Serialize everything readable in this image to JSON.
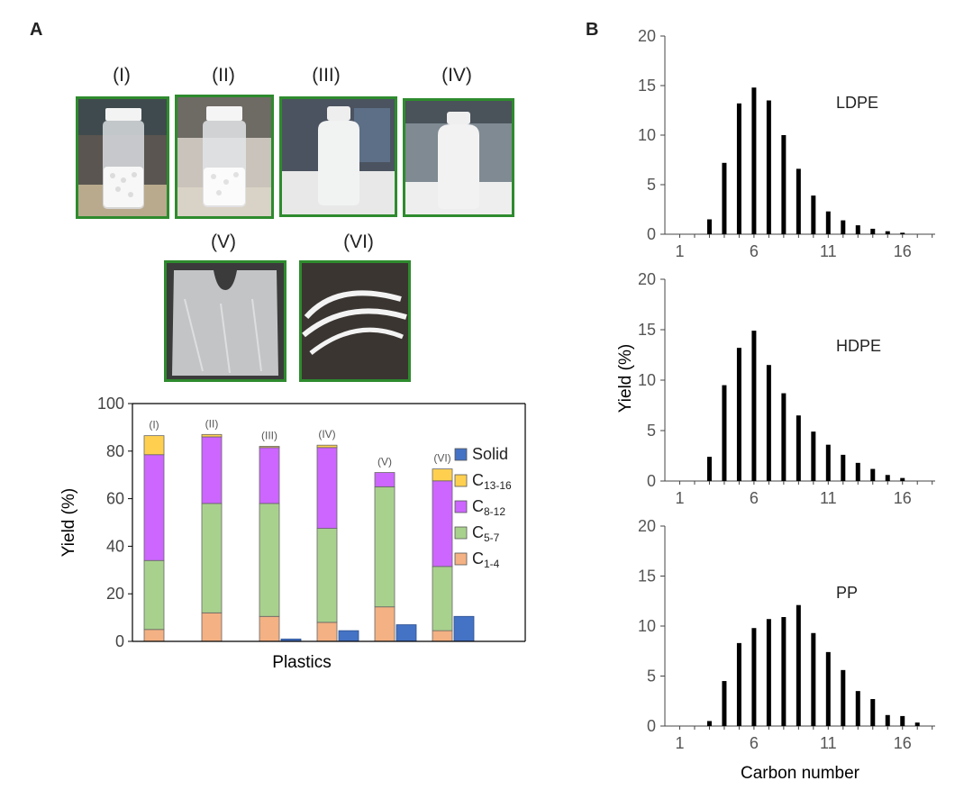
{
  "panels": {
    "a": "A",
    "b": "B"
  },
  "photos": [
    {
      "label": "(I)",
      "kind": "vial-pellets"
    },
    {
      "label": "(II)",
      "kind": "vial-pellets"
    },
    {
      "label": "(III)",
      "kind": "bottle"
    },
    {
      "label": "(IV)",
      "kind": "bottle"
    },
    {
      "label": "(V)",
      "kind": "plastic-bag"
    },
    {
      "label": "(VI)",
      "kind": "plastic-strips"
    }
  ],
  "colors": {
    "c14": "#f4b183",
    "c57": "#a9d18e",
    "c812": "#cc66ff",
    "c1316": "#ffd050",
    "solid": "#4472c4",
    "photo_border": "#2e8b2e"
  },
  "chart_data": [
    {
      "type": "bar",
      "stacked": true,
      "xlabel": "Plastics",
      "ylabel": "Yield (%)",
      "ylim": [
        0,
        100
      ],
      "yticks": [
        "0",
        "20",
        "40",
        "60",
        "80",
        "100"
      ],
      "categories": [
        "(I)",
        "(II)",
        "(III)",
        "(IV)",
        "(V)",
        "(VI)"
      ],
      "series": [
        {
          "name": "C1-4",
          "sub": "1-4",
          "values": [
            5,
            12,
            10.5,
            8,
            14.5,
            4.5
          ]
        },
        {
          "name": "C5-7",
          "sub": "5-7",
          "values": [
            29,
            46,
            47.5,
            39.5,
            50.5,
            27
          ]
        },
        {
          "name": "C8-12",
          "sub": "8-12",
          "values": [
            44.5,
            28,
            23.5,
            34,
            6,
            36
          ]
        },
        {
          "name": "C13-16",
          "sub": "13-16",
          "values": [
            8,
            1,
            0.5,
            1,
            0,
            5
          ]
        }
      ],
      "solid": {
        "name": "Solid",
        "values": [
          0,
          0,
          1,
          4.5,
          7,
          10.5
        ]
      },
      "legend": [
        "Solid",
        "C13-16",
        "C8-12",
        "C5-7",
        "C1-4"
      ],
      "legend_position": "right"
    },
    {
      "type": "bar",
      "annotation": "LDPE",
      "xticks": [
        "1",
        "6",
        "11",
        "16"
      ],
      "yticks": [
        "0",
        "5",
        "10",
        "15",
        "20"
      ],
      "ylim": [
        0,
        20
      ],
      "x": [
        3,
        4,
        5,
        6,
        7,
        8,
        9,
        10,
        11,
        12,
        13,
        14,
        15,
        16
      ],
      "values": [
        1.5,
        7.2,
        13.2,
        14.8,
        13.5,
        10,
        6.6,
        3.9,
        2.3,
        1.4,
        0.9,
        0.55,
        0.3,
        0.15
      ]
    },
    {
      "type": "bar",
      "annotation": "HDPE",
      "ylabel": "Yield (%)",
      "xticks": [
        "1",
        "6",
        "11",
        "16"
      ],
      "yticks": [
        "0",
        "5",
        "10",
        "15",
        "20"
      ],
      "ylim": [
        0,
        20
      ],
      "x": [
        3,
        4,
        5,
        6,
        7,
        8,
        9,
        10,
        11,
        12,
        13,
        14,
        15,
        16
      ],
      "values": [
        2.4,
        9.5,
        13.2,
        14.9,
        11.5,
        8.7,
        6.5,
        4.9,
        3.6,
        2.6,
        1.8,
        1.2,
        0.6,
        0.3
      ]
    },
    {
      "type": "bar",
      "annotation": "PP",
      "xlabel": "Carbon number",
      "xticks": [
        "1",
        "6",
        "11",
        "16"
      ],
      "yticks": [
        "0",
        "5",
        "10",
        "15",
        "20"
      ],
      "ylim": [
        0,
        20
      ],
      "x": [
        3,
        4,
        5,
        6,
        7,
        8,
        9,
        10,
        11,
        12,
        13,
        14,
        15,
        16,
        17
      ],
      "values": [
        0.5,
        4.5,
        8.3,
        9.8,
        10.7,
        10.9,
        12.1,
        9.3,
        7.4,
        5.6,
        3.5,
        2.7,
        1.1,
        1.0,
        0.35
      ]
    }
  ]
}
